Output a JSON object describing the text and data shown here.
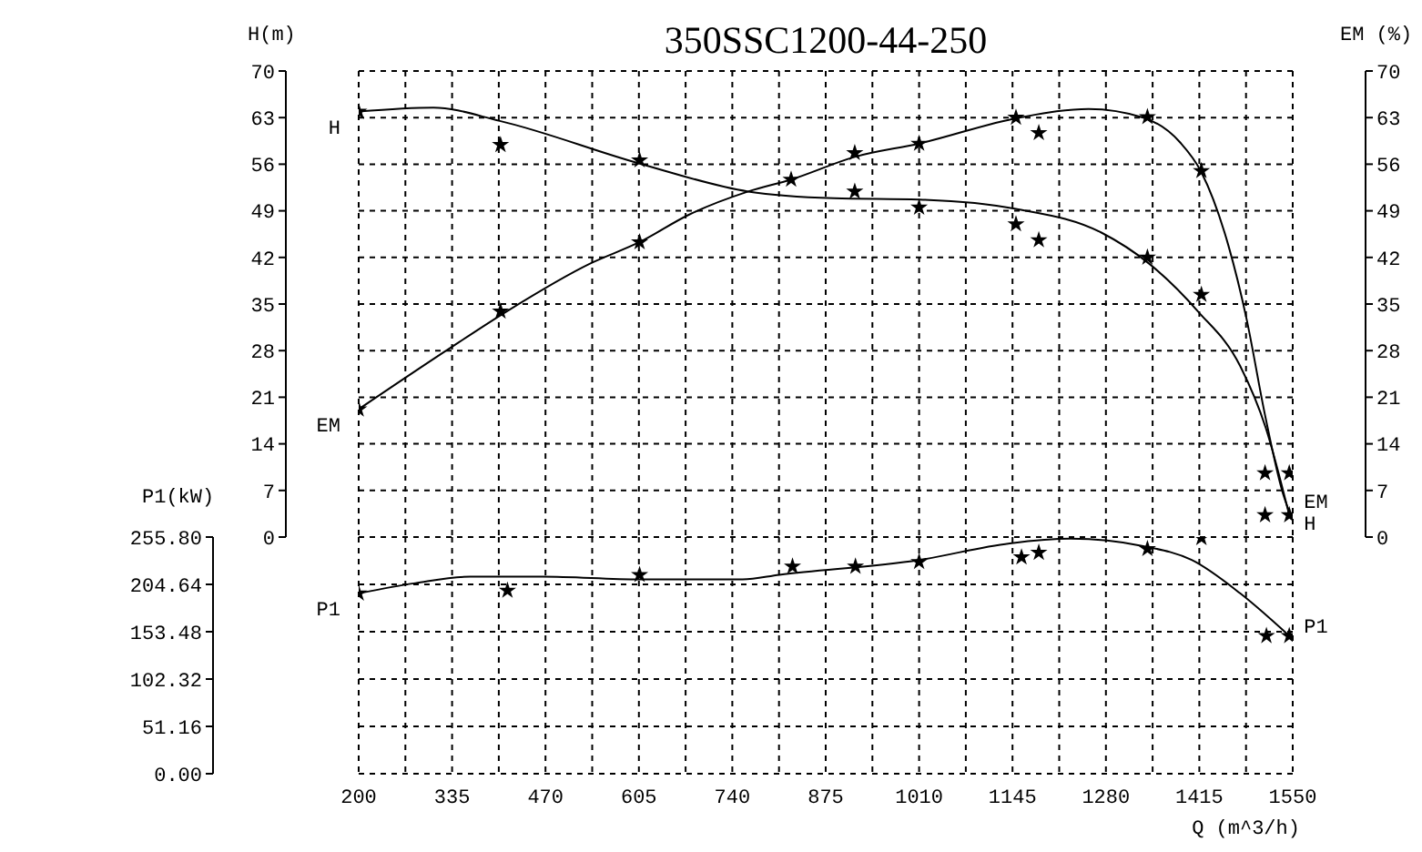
{
  "chart_data": [
    {
      "type": "line",
      "title": "350SSC1200-44-250",
      "ylabel": "H(m)",
      "y2label": "EM (%)",
      "tick_labels": "y",
      "xlim": [
        200,
        1550
      ],
      "xticks": [
        200,
        {
          "value": 267.5,
          "label": null
        },
        335,
        {
          "value": 402.5,
          "label": null
        },
        470,
        {
          "value": 537.5,
          "label": null
        },
        605,
        {
          "value": 672.5,
          "label": null
        },
        740,
        {
          "value": 807.5,
          "label": null
        },
        875,
        {
          "value": 942.5,
          "label": null
        },
        1010,
        {
          "value": 1077.5,
          "label": null
        },
        1145,
        {
          "value": 1212.5,
          "label": null
        },
        1280,
        {
          "value": 1347.5,
          "label": null
        },
        1415,
        {
          "value": 1482.5,
          "label": null
        },
        1550
      ],
      "ylim": [
        0,
        70
      ],
      "yticks": [
        0,
        7,
        14,
        21,
        28,
        35,
        42,
        49,
        56,
        63,
        70
      ],
      "y2lim": [
        0,
        70
      ],
      "y2ticks": [
        0,
        7,
        14,
        21,
        28,
        35,
        42,
        49,
        56,
        63,
        70
      ],
      "grid": true,
      "marker": "none",
      "line_style": "solid",
      "series": [
        {
          "name": "H",
          "color": "#000000",
          "x": [
            200,
            308,
            404,
            606,
            763,
            887,
            1010,
            1150,
            1274,
            1342,
            1413,
            1474,
            1511,
            1545
          ],
          "values": [
            63.9,
            64.5,
            62.5,
            56.1,
            51.9,
            50.9,
            50.7,
            49.3,
            45.7,
            41.1,
            33.9,
            25.7,
            16.4,
            3.3
          ]
        },
        {
          "name": "EM",
          "axis": "y2",
          "color": "#000000",
          "x": [
            200,
            325,
            414,
            535,
            606,
            677,
            763,
            825,
            917,
            1010,
            1155,
            1255,
            1334,
            1387,
            1418,
            1457,
            1483,
            1510,
            1536,
            1545
          ],
          "values": [
            19.2,
            27.9,
            33.9,
            41.1,
            44.3,
            48.4,
            51.9,
            53.7,
            57.1,
            59.1,
            63.0,
            64.3,
            63.0,
            59.3,
            54.8,
            43.8,
            32.9,
            18.3,
            6.5,
            3.8
          ]
        },
        {
          "type": "scatter",
          "marker": "star",
          "color": "#000000",
          "x": [
            200,
            405,
            606,
            917,
            1010,
            1150,
            1183,
            1340,
            1418,
            1510,
            1545
          ],
          "values": [
            63.9,
            58.9,
            56.6,
            51.9,
            49.5,
            47.0,
            44.6,
            42.0,
            36.4,
            3.3,
            3.3
          ]
        },
        {
          "type": "scatter",
          "axis": "y2",
          "marker": "star",
          "color": "#000000",
          "x": [
            200,
            405,
            606,
            825,
            917,
            1010,
            1150,
            1183,
            1340,
            1418,
            1510,
            1545
          ],
          "values": [
            19.2,
            33.9,
            44.3,
            53.7,
            57.7,
            59.1,
            63.0,
            60.7,
            63.1,
            55.0,
            9.6,
            9.6
          ]
        }
      ]
    },
    {
      "type": "line",
      "xlabel": "Q (m^3/h)",
      "ylabel": "P1(kW)",
      "xlim": [
        200,
        1550
      ],
      "xticks": [
        200,
        {
          "value": 267.5,
          "label": null
        },
        335,
        {
          "value": 402.5,
          "label": null
        },
        470,
        {
          "value": 537.5,
          "label": null
        },
        605,
        {
          "value": 672.5,
          "label": null
        },
        740,
        {
          "value": 807.5,
          "label": null
        },
        875,
        {
          "value": 942.5,
          "label": null
        },
        1010,
        {
          "value": 1077.5,
          "label": null
        },
        1145,
        {
          "value": 1212.5,
          "label": null
        },
        1280,
        {
          "value": 1347.5,
          "label": null
        },
        1415,
        {
          "value": 1482.5,
          "label": null
        },
        1550
      ],
      "ylim": [
        0,
        255.8
      ],
      "yticks": [
        {
          "value": 0,
          "label": "0.00"
        },
        51.16,
        102.32,
        153.48,
        204.64,
        {
          "value": 255.8,
          "label": "255.80"
        }
      ],
      "grid": true,
      "marker": "none",
      "line_style": "solid",
      "series": [
        {
          "name": "P1",
          "color": "#000000",
          "x": [
            200,
            282,
            361,
            466,
            606,
            755,
            808,
            1010,
            1141,
            1229,
            1334,
            1404,
            1474,
            1545
          ],
          "values": [
            195,
            206,
            213,
            213,
            210,
            210,
            215,
            231,
            249,
            254,
            246,
            231,
            195,
            149
          ]
        },
        {
          "type": "scatter",
          "marker": "star",
          "color": "#000000",
          "x": [
            200,
            415,
            606,
            827,
            918,
            1010,
            1158,
            1183,
            1340,
            1418,
            1512,
            1545
          ],
          "values": [
            195,
            198,
            215,
            224,
            224,
            229,
            234,
            239,
            243,
            255,
            149,
            149
          ]
        }
      ]
    }
  ]
}
